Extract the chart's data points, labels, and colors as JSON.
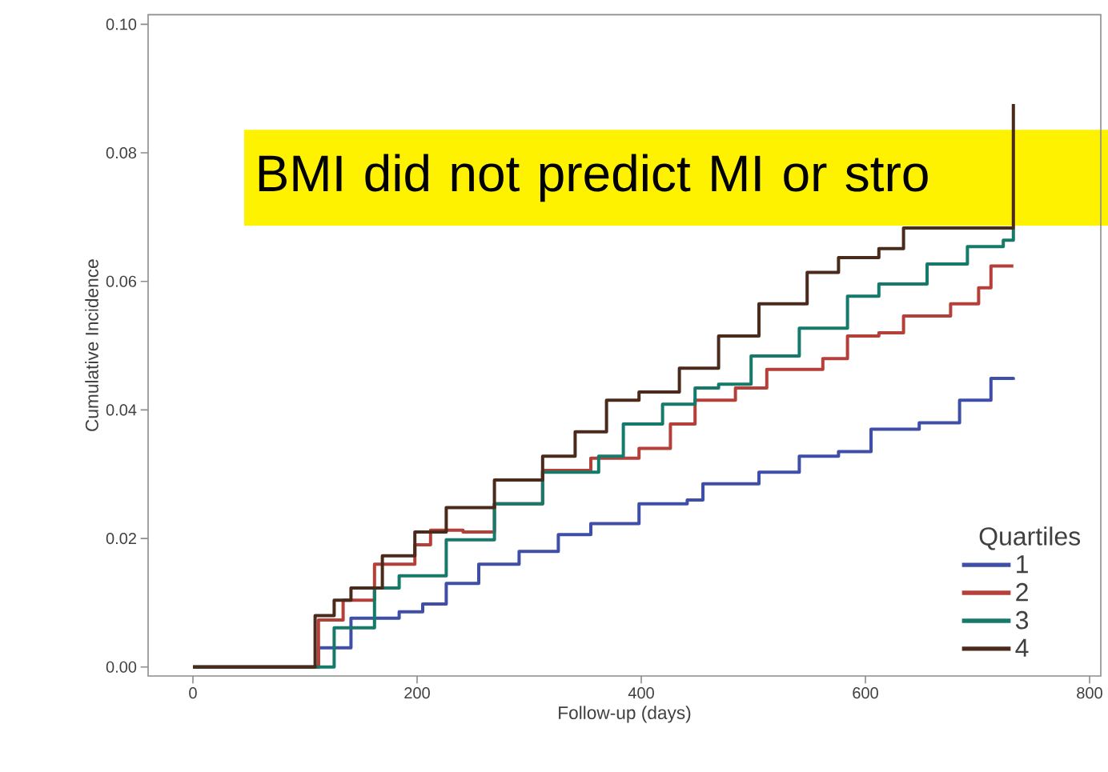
{
  "chart_data": {
    "type": "step",
    "xlabel": "Follow-up (days)",
    "ylabel": "Cumulative Incidence",
    "legend_title": "Quartiles",
    "legend": "bottom right",
    "annotations": [
      "BMI did not predict MI or stro"
    ],
    "xlim": [
      -40,
      810
    ],
    "ylim": [
      -0.0014,
      0.1015
    ],
    "xticks": [
      0,
      200,
      400,
      600,
      800
    ],
    "yticks": [
      {
        "value": 0,
        "label": "0.00"
      },
      {
        "value": 0.02,
        "label": "0.02"
      },
      {
        "value": 0.04,
        "label": "0.04"
      },
      {
        "value": 0.06,
        "label": "0.06"
      },
      {
        "value": 0.08,
        "label": "0.08"
      },
      {
        "value": 0.1,
        "label": "0.10"
      }
    ],
    "series": [
      {
        "name": "1",
        "color": "#3f4fa8",
        "x": [
          0,
          95,
          112,
          141,
          184,
          205,
          226,
          255,
          291,
          326,
          355,
          398,
          441,
          455,
          505,
          541,
          576,
          605,
          648,
          684,
          712,
          732
        ],
        "values": [
          0,
          0,
          0.003,
          0.0076,
          0.0086,
          0.0098,
          0.013,
          0.016,
          0.018,
          0.0206,
          0.0223,
          0.0254,
          0.026,
          0.0285,
          0.0303,
          0.0328,
          0.0335,
          0.037,
          0.038,
          0.0415,
          0.0449,
          0.0447
        ]
      },
      {
        "name": "2",
        "color": "#b5403a",
        "x": [
          0,
          98,
          112,
          134,
          162,
          198,
          212,
          241,
          269,
          312,
          355,
          398,
          426,
          448,
          484,
          512,
          562,
          584,
          612,
          634,
          676,
          701,
          712,
          732
        ],
        "values": [
          0,
          0,
          0.0073,
          0.0104,
          0.016,
          0.019,
          0.0213,
          0.021,
          0.0254,
          0.0306,
          0.0325,
          0.034,
          0.0378,
          0.0415,
          0.0434,
          0.0463,
          0.048,
          0.0515,
          0.052,
          0.0546,
          0.0565,
          0.059,
          0.0624,
          0.0624
        ]
      },
      {
        "name": "3",
        "color": "#167a6a",
        "x": [
          0,
          98,
          126,
          162,
          184,
          226,
          269,
          312,
          362,
          384,
          419,
          448,
          469,
          498,
          541,
          584,
          612,
          655,
          691,
          723,
          732
        ],
        "values": [
          0,
          0,
          0.0061,
          0.0123,
          0.0142,
          0.0198,
          0.0254,
          0.0303,
          0.0328,
          0.0378,
          0.0409,
          0.0434,
          0.044,
          0.0484,
          0.0527,
          0.0577,
          0.0596,
          0.0627,
          0.0654,
          0.0664,
          0.0683
        ]
      },
      {
        "name": "4",
        "color": "#4a2a1a",
        "x": [
          0,
          98,
          109,
          126,
          141,
          169,
          198,
          226,
          269,
          312,
          341,
          369,
          398,
          434,
          469,
          505,
          548,
          576,
          612,
          634,
          732
        ],
        "values": [
          0,
          0,
          0.008,
          0.0104,
          0.0123,
          0.0173,
          0.021,
          0.0248,
          0.0291,
          0.0328,
          0.0366,
          0.0415,
          0.0428,
          0.0465,
          0.0515,
          0.0565,
          0.0614,
          0.0637,
          0.0651,
          0.0683,
          0.0876
        ]
      }
    ]
  }
}
